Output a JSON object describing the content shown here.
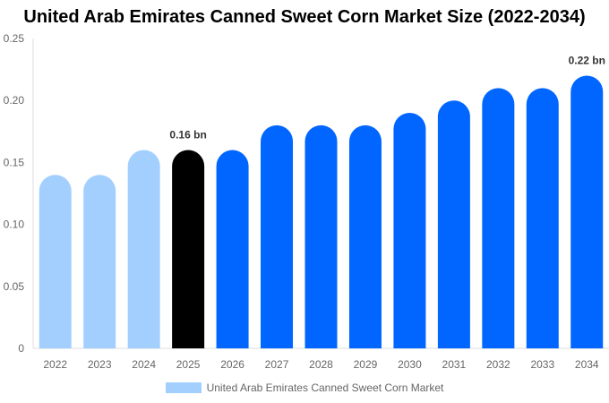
{
  "chart_data": {
    "type": "bar",
    "title": "United Arab Emirates Canned Sweet Corn Market Size (2022-2034)",
    "categories": [
      "2022",
      "2023",
      "2024",
      "2025",
      "2026",
      "2027",
      "2028",
      "2029",
      "2030",
      "2031",
      "2032",
      "2033",
      "2034"
    ],
    "series": [
      {
        "name": "United Arab Emirates Canned Sweet Corn Market",
        "values": [
          0.14,
          0.14,
          0.16,
          0.16,
          0.16,
          0.18,
          0.18,
          0.18,
          0.19,
          0.2,
          0.21,
          0.21,
          0.22
        ]
      }
    ],
    "bar_colors": [
      "#a3cfff",
      "#a3cfff",
      "#a3cfff",
      "#000000",
      "#0066ff",
      "#0066ff",
      "#0066ff",
      "#0066ff",
      "#0066ff",
      "#0066ff",
      "#0066ff",
      "#0066ff",
      "#0066ff"
    ],
    "data_labels": {
      "2025": "0.16 bn",
      "2034": "0.22 bn"
    },
    "yticks": [
      "0",
      "0.05",
      "0.10",
      "0.15",
      "0.20",
      "0.25"
    ],
    "ylim": [
      0,
      0.25
    ],
    "xlabel": "",
    "ylabel": "",
    "grid": false,
    "legend_position": "bottom"
  }
}
